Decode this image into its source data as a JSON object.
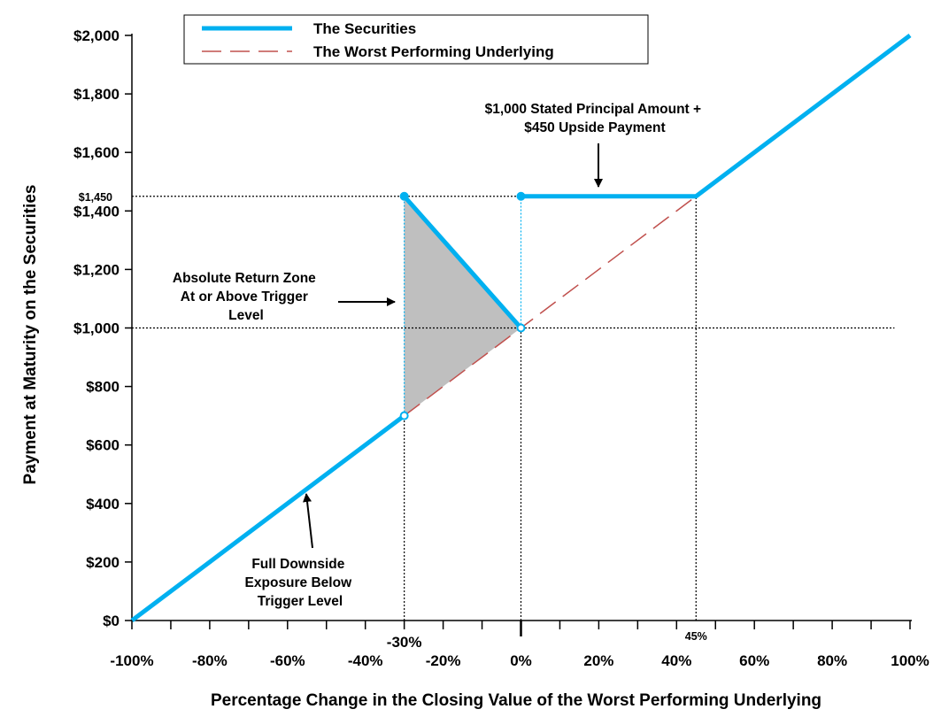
{
  "chart_data": {
    "type": "line",
    "xlabel": "Percentage Change in the Closing Value of the Worst Performing Underlying",
    "ylabel": "Payment at Maturity on the Securities",
    "xlim": [
      -100,
      100
    ],
    "ylim": [
      0,
      2000
    ],
    "x_ticks": [
      -100,
      -80,
      -60,
      -40,
      -20,
      0,
      20,
      40,
      60,
      80,
      100
    ],
    "x_tick_labels": [
      "-100%",
      "-80%",
      "-60%",
      "-40%",
      "-20%",
      "0%",
      "20%",
      "40%",
      "60%",
      "80%",
      "100%"
    ],
    "y_ticks": [
      0,
      200,
      400,
      600,
      800,
      1000,
      1200,
      1400,
      1600,
      1800,
      2000
    ],
    "y_tick_labels": [
      "$0",
      "$200",
      "$400",
      "$600",
      "$800",
      "$1,000",
      "$1,200",
      "$1,400",
      "$1,600",
      "$1,800",
      "$2,000"
    ],
    "extra_y_mark": {
      "value": 1450,
      "label": "$1,450"
    },
    "extra_x_marks": [
      {
        "value": -30,
        "label": "-30%"
      },
      {
        "value": 45,
        "label": "45%"
      }
    ],
    "legend_position": "top",
    "series": [
      {
        "name": "The Securities",
        "style": "solid",
        "color": "#00b0f0",
        "segments": [
          [
            [
              -100,
              0
            ],
            [
              -30,
              700
            ]
          ],
          [
            [
              -30,
              1450
            ],
            [
              0,
              1000
            ]
          ],
          [
            [
              0,
              1450
            ],
            [
              45,
              1450
            ],
            [
              100,
              2000
            ]
          ]
        ]
      },
      {
        "name": "The Worst Performing Underlying",
        "style": "dashed",
        "color": "#c0504d",
        "segments": [
          [
            [
              -30,
              700
            ],
            [
              45,
              1450
            ]
          ]
        ]
      }
    ],
    "shaded_region": {
      "color": "#bfbfbf",
      "polygon": [
        [
          -30,
          1450
        ],
        [
          0,
          1000
        ],
        [
          -30,
          700
        ]
      ]
    },
    "reference_lines": [
      {
        "type": "h",
        "y": 1450,
        "x_from": -100,
        "x_to": 45,
        "style": "dotted",
        "color": "#000000"
      },
      {
        "type": "h",
        "y": 1000,
        "x_from": -100,
        "x_to": 96,
        "style": "dotted",
        "color": "#000000"
      },
      {
        "type": "v",
        "x": -30,
        "y_from": 0,
        "y_to": 700,
        "style": "dotted",
        "color": "#000000"
      },
      {
        "type": "v",
        "x": -30,
        "y_from": 700,
        "y_to": 1450,
        "style": "dotted",
        "color": "#00b0f0"
      },
      {
        "type": "v",
        "x": 0,
        "y_from": 0,
        "y_to": 1000,
        "style": "dotted",
        "color": "#000000"
      },
      {
        "type": "v",
        "x": 0,
        "y_from": 1000,
        "y_to": 1450,
        "style": "dotted",
        "color": "#00b0f0"
      },
      {
        "type": "v",
        "x": 45,
        "y_from": 0,
        "y_to": 1450,
        "style": "dotted",
        "color": "#000000"
      }
    ],
    "markers": [
      {
        "x": -30,
        "y": 1450,
        "fill": "filled"
      },
      {
        "x": 0,
        "y": 1450,
        "fill": "filled"
      },
      {
        "x": -30,
        "y": 700,
        "fill": "open"
      },
      {
        "x": 0,
        "y": 1000,
        "fill": "open"
      }
    ],
    "annotations": [
      {
        "id": "upside",
        "lines": [
          "$1,000 Stated Principal Amount +",
          "$450 Upside Payment"
        ]
      },
      {
        "id": "zone",
        "lines": [
          "Absolute Return Zone",
          "At or Above Trigger",
          "Level"
        ]
      },
      {
        "id": "downside",
        "lines": [
          "Full Downside",
          "Exposure Below",
          "Trigger Level"
        ]
      }
    ]
  }
}
